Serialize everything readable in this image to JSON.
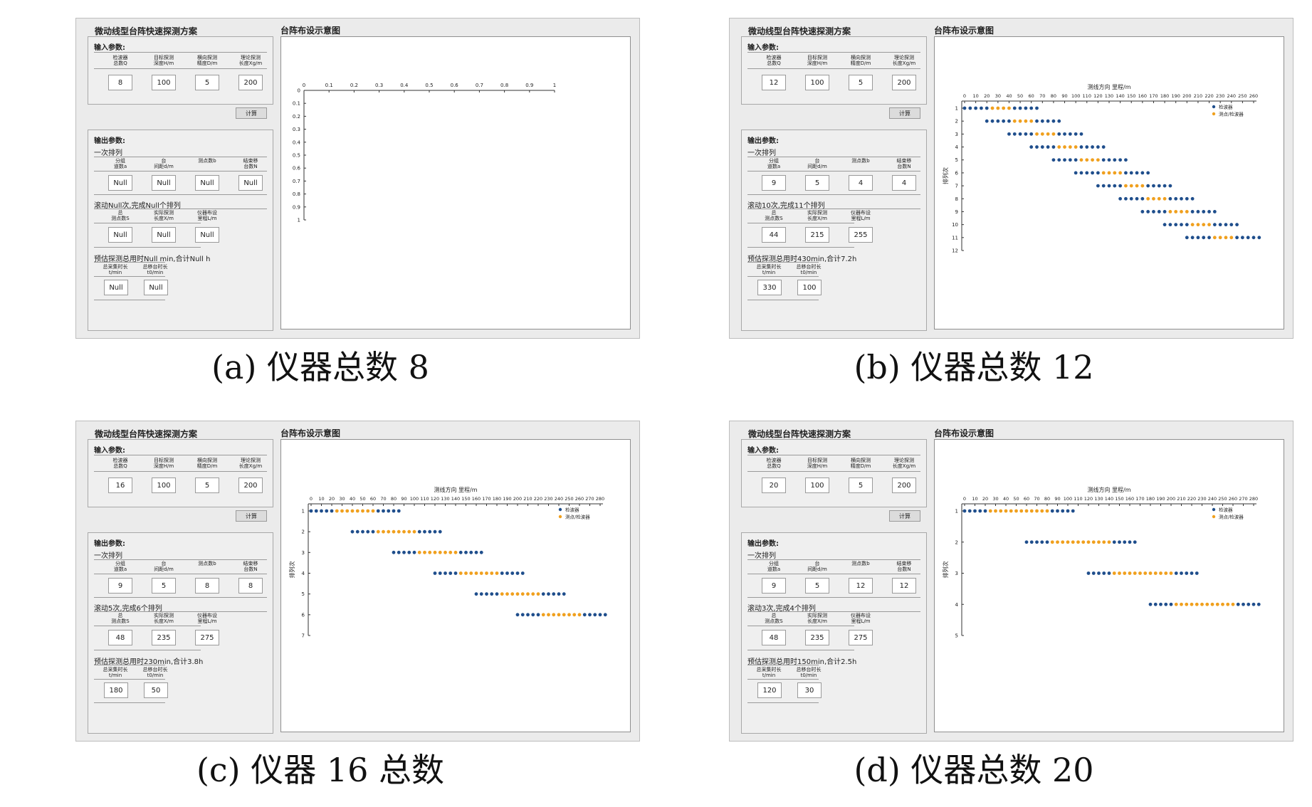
{
  "labels": {
    "app_title": "微动线型台阵快速探测方案",
    "diagram_title": "台阵布设示意图",
    "input_section": "输入参数:",
    "output_section": "输出参数:",
    "single_arrangement": "一次排列",
    "calc_button": "计算",
    "input_captions": [
      "检波器\n总数Q",
      "目标探测\n深度H/m",
      "横向探测\n精度D/m",
      "理论探测\n长度Xg/m"
    ],
    "arrangement_captions": [
      "分组\n道数a",
      "台\n间距d/m",
      "测点数b",
      "结束移\n台数N"
    ],
    "total_captions": [
      "总\n测点数S",
      "实际探测\n长度X/m",
      "仪器布设\n里程L/m"
    ],
    "time_captions": [
      "总采集时长\nt/min",
      "总移台时长\nt0/min"
    ],
    "x_axis_title": "测线方向 里程/m",
    "y_axis_title": "排列次",
    "legend_detector": "检波器",
    "legend_shared": "测点/检波器"
  },
  "panels": [
    {
      "caption": "(a) 仪器总数 8",
      "inputs": [
        "8",
        "100",
        "5",
        "200"
      ],
      "arrangement": [
        "Null",
        "Null",
        "Null",
        "Null"
      ],
      "roll_text": "滚动Null次,完成Null个排列",
      "totals": [
        "Null",
        "Null",
        "Null"
      ],
      "estimate_text": "预估探测总用时Null min,合计Null h",
      "times": [
        "Null",
        "Null"
      ],
      "chart_data": {
        "type": "scatter",
        "empty": true,
        "x_ticks": [
          "0",
          "0.1",
          "0.2",
          "0.3",
          "0.4",
          "0.5",
          "0.6",
          "0.7",
          "0.8",
          "0.9",
          "1"
        ],
        "y_ticks": [
          "0",
          "0.1",
          "0.2",
          "0.3",
          "0.4",
          "0.5",
          "0.6",
          "0.7",
          "0.8",
          "0.9",
          "1"
        ],
        "xlim": [
          0,
          1
        ],
        "ylim": [
          0,
          1
        ],
        "legend": false,
        "rows": []
      }
    },
    {
      "caption": "(b) 仪器总数 12",
      "inputs": [
        "12",
        "100",
        "5",
        "200"
      ],
      "arrangement": [
        "9",
        "5",
        "4",
        "4"
      ],
      "roll_text": "滚动10次,完成11个排列",
      "totals": [
        "44",
        "215",
        "255"
      ],
      "estimate_text": "预估探测总用时430min,合计7.2h",
      "times": [
        "330",
        "100"
      ],
      "chart_data": {
        "type": "scatter",
        "empty": false,
        "x_ticks": [
          "0",
          "10",
          "20",
          "30",
          "40",
          "50",
          "60",
          "70",
          "80",
          "90",
          "100",
          "110",
          "120",
          "130",
          "140",
          "150",
          "160",
          "170",
          "180",
          "190",
          "200",
          "210",
          "220",
          "230",
          "240",
          "250",
          "260"
        ],
        "y_ticks": [
          "1",
          "2",
          "3",
          "4",
          "5",
          "6",
          "7",
          "8",
          "9",
          "10",
          "11",
          "12"
        ],
        "xlim": [
          0,
          260
        ],
        "ylim": [
          1,
          12
        ],
        "legend": "top-right",
        "spacing": 5,
        "rows": [
          {
            "row": 1,
            "start": 0,
            "pattern": [
              "b",
              "b",
              "b",
              "b",
              "b",
              "o",
              "o",
              "o",
              "o",
              "b",
              "b",
              "b",
              "b",
              "b"
            ]
          },
          {
            "row": 2,
            "start": 20,
            "pattern": [
              "b",
              "b",
              "b",
              "b",
              "b",
              "o",
              "o",
              "o",
              "o",
              "b",
              "b",
              "b",
              "b",
              "b"
            ]
          },
          {
            "row": 3,
            "start": 40,
            "pattern": [
              "b",
              "b",
              "b",
              "b",
              "b",
              "o",
              "o",
              "o",
              "o",
              "b",
              "b",
              "b",
              "b",
              "b"
            ]
          },
          {
            "row": 4,
            "start": 60,
            "pattern": [
              "b",
              "b",
              "b",
              "b",
              "b",
              "o",
              "o",
              "o",
              "o",
              "b",
              "b",
              "b",
              "b",
              "b"
            ]
          },
          {
            "row": 5,
            "start": 80,
            "pattern": [
              "b",
              "b",
              "b",
              "b",
              "b",
              "o",
              "o",
              "o",
              "o",
              "b",
              "b",
              "b",
              "b",
              "b"
            ]
          },
          {
            "row": 6,
            "start": 100,
            "pattern": [
              "b",
              "b",
              "b",
              "b",
              "b",
              "o",
              "o",
              "o",
              "o",
              "b",
              "b",
              "b",
              "b",
              "b"
            ]
          },
          {
            "row": 7,
            "start": 120,
            "pattern": [
              "b",
              "b",
              "b",
              "b",
              "b",
              "o",
              "o",
              "o",
              "o",
              "b",
              "b",
              "b",
              "b",
              "b"
            ]
          },
          {
            "row": 8,
            "start": 140,
            "pattern": [
              "b",
              "b",
              "b",
              "b",
              "b",
              "o",
              "o",
              "o",
              "o",
              "b",
              "b",
              "b",
              "b",
              "b"
            ]
          },
          {
            "row": 9,
            "start": 160,
            "pattern": [
              "b",
              "b",
              "b",
              "b",
              "b",
              "o",
              "o",
              "o",
              "o",
              "b",
              "b",
              "b",
              "b",
              "b"
            ]
          },
          {
            "row": 10,
            "start": 180,
            "pattern": [
              "b",
              "b",
              "b",
              "b",
              "b",
              "o",
              "o",
              "o",
              "o",
              "b",
              "b",
              "b",
              "b",
              "b"
            ]
          },
          {
            "row": 11,
            "start": 200,
            "pattern": [
              "b",
              "b",
              "b",
              "b",
              "b",
              "o",
              "o",
              "o",
              "o",
              "b",
              "b",
              "b",
              "b",
              "b"
            ]
          }
        ]
      }
    },
    {
      "caption": "(c) 仪器 16 总数",
      "inputs": [
        "16",
        "100",
        "5",
        "200"
      ],
      "arrangement": [
        "9",
        "5",
        "8",
        "8"
      ],
      "roll_text": "滚动5次,完成6个排列",
      "totals": [
        "48",
        "235",
        "275"
      ],
      "estimate_text": "预估探测总用时230min,合计3.8h",
      "times": [
        "180",
        "50"
      ],
      "chart_data": {
        "type": "scatter",
        "empty": false,
        "x_ticks": [
          "0",
          "10",
          "20",
          "30",
          "40",
          "50",
          "60",
          "70",
          "80",
          "90",
          "100",
          "110",
          "120",
          "130",
          "140",
          "150",
          "160",
          "170",
          "180",
          "190",
          "200",
          "210",
          "220",
          "230",
          "240",
          "250",
          "260",
          "270",
          "280"
        ],
        "y_ticks": [
          "1",
          "2",
          "3",
          "4",
          "5",
          "6",
          "7"
        ],
        "xlim": [
          0,
          280
        ],
        "ylim": [
          1,
          7
        ],
        "legend": "top-right",
        "spacing": 5,
        "rows": [
          {
            "row": 1,
            "start": 0,
            "pattern": [
              "b",
              "b",
              "b",
              "b",
              "b",
              "o",
              "o",
              "o",
              "o",
              "o",
              "o",
              "o",
              "o",
              "b",
              "b",
              "b",
              "b",
              "b"
            ]
          },
          {
            "row": 2,
            "start": 40,
            "pattern": [
              "b",
              "b",
              "b",
              "b",
              "b",
              "o",
              "o",
              "o",
              "o",
              "o",
              "o",
              "o",
              "o",
              "b",
              "b",
              "b",
              "b",
              "b"
            ]
          },
          {
            "row": 3,
            "start": 80,
            "pattern": [
              "b",
              "b",
              "b",
              "b",
              "b",
              "o",
              "o",
              "o",
              "o",
              "o",
              "o",
              "o",
              "o",
              "b",
              "b",
              "b",
              "b",
              "b"
            ]
          },
          {
            "row": 4,
            "start": 120,
            "pattern": [
              "b",
              "b",
              "b",
              "b",
              "b",
              "o",
              "o",
              "o",
              "o",
              "o",
              "o",
              "o",
              "o",
              "b",
              "b",
              "b",
              "b",
              "b"
            ]
          },
          {
            "row": 5,
            "start": 160,
            "pattern": [
              "b",
              "b",
              "b",
              "b",
              "b",
              "o",
              "o",
              "o",
              "o",
              "o",
              "o",
              "o",
              "o",
              "b",
              "b",
              "b",
              "b",
              "b"
            ]
          },
          {
            "row": 6,
            "start": 200,
            "pattern": [
              "b",
              "b",
              "b",
              "b",
              "b",
              "o",
              "o",
              "o",
              "o",
              "o",
              "o",
              "o",
              "o",
              "b",
              "b",
              "b",
              "b",
              "b"
            ]
          }
        ]
      }
    },
    {
      "caption": "(d) 仪器总数 20",
      "inputs": [
        "20",
        "100",
        "5",
        "200"
      ],
      "arrangement": [
        "9",
        "5",
        "12",
        "12"
      ],
      "roll_text": "滚动3次,完成4个排列",
      "totals": [
        "48",
        "235",
        "275"
      ],
      "estimate_text": "预估探测总用时150min,合计2.5h",
      "times": [
        "120",
        "30"
      ],
      "chart_data": {
        "type": "scatter",
        "empty": false,
        "x_ticks": [
          "0",
          "10",
          "20",
          "30",
          "40",
          "50",
          "60",
          "70",
          "80",
          "90",
          "100",
          "110",
          "120",
          "130",
          "140",
          "150",
          "160",
          "170",
          "180",
          "190",
          "200",
          "210",
          "220",
          "230",
          "240",
          "250",
          "260",
          "270",
          "280"
        ],
        "y_ticks": [
          "1",
          "2",
          "3",
          "4",
          "5"
        ],
        "xlim": [
          0,
          280
        ],
        "ylim": [
          1,
          5
        ],
        "legend": "top-right",
        "spacing": 5,
        "rows": [
          {
            "row": 1,
            "start": 0,
            "pattern": [
              "b",
              "b",
              "b",
              "b",
              "b",
              "o",
              "o",
              "o",
              "o",
              "o",
              "o",
              "o",
              "o",
              "o",
              "o",
              "o",
              "o",
              "b",
              "b",
              "b",
              "b",
              "b"
            ]
          },
          {
            "row": 2,
            "start": 60,
            "pattern": [
              "b",
              "b",
              "b",
              "b",
              "b",
              "o",
              "o",
              "o",
              "o",
              "o",
              "o",
              "o",
              "o",
              "o",
              "o",
              "o",
              "o",
              "b",
              "b",
              "b",
              "b",
              "b"
            ]
          },
          {
            "row": 3,
            "start": 120,
            "pattern": [
              "b",
              "b",
              "b",
              "b",
              "b",
              "o",
              "o",
              "o",
              "o",
              "o",
              "o",
              "o",
              "o",
              "o",
              "o",
              "o",
              "o",
              "b",
              "b",
              "b",
              "b",
              "b"
            ]
          },
          {
            "row": 4,
            "start": 180,
            "pattern": [
              "b",
              "b",
              "b",
              "b",
              "b",
              "o",
              "o",
              "o",
              "o",
              "o",
              "o",
              "o",
              "o",
              "o",
              "o",
              "o",
              "o",
              "b",
              "b",
              "b",
              "b",
              "b"
            ]
          }
        ]
      }
    }
  ],
  "colors": {
    "detector": "#1f4e8c",
    "shared": "#f0a01e"
  }
}
